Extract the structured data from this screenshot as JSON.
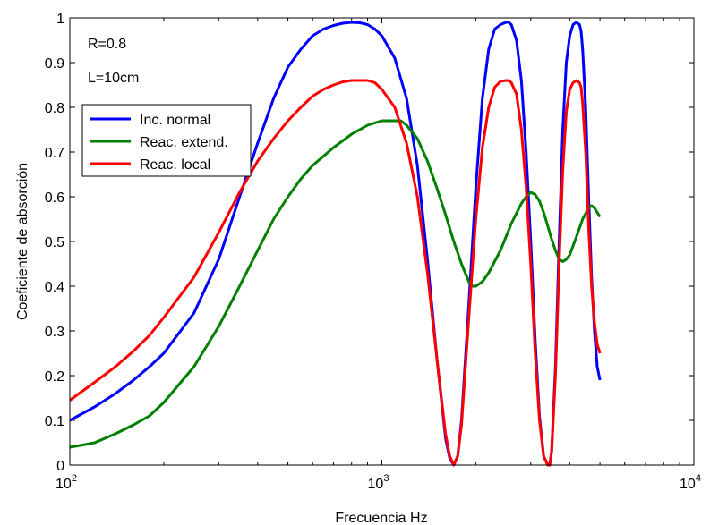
{
  "chart_data": {
    "type": "line",
    "xscale": "log",
    "xlim": [
      100,
      10000
    ],
    "ylim": [
      0,
      1
    ],
    "xlabel": "Frecuencia Hz",
    "ylabel": "Coeficiente de absorción",
    "xticks": [
      {
        "value": 100,
        "base": "10",
        "exp": "2"
      },
      {
        "value": 1000,
        "base": "10",
        "exp": "3"
      },
      {
        "value": 10000,
        "base": "10",
        "exp": "4"
      }
    ],
    "yticks": [
      "0",
      "0.1",
      "0.2",
      "0.3",
      "0.4",
      "0.5",
      "0.6",
      "0.7",
      "0.8",
      "0.9",
      "1"
    ],
    "annotations": [
      "R=0.8",
      "L=10cm"
    ],
    "legend_position": "upper-left",
    "series": [
      {
        "name": "Inc. normal",
        "color": "#0000ff",
        "x": [
          100,
          120,
          140,
          160,
          180,
          200,
          250,
          300,
          350,
          400,
          450,
          500,
          550,
          600,
          650,
          700,
          750,
          800,
          850,
          900,
          950,
          1000,
          1100,
          1200,
          1300,
          1400,
          1500,
          1600,
          1650,
          1700,
          1750,
          1800,
          1900,
          2000,
          2100,
          2200,
          2300,
          2400,
          2500,
          2550,
          2600,
          2700,
          2800,
          2900,
          3000,
          3100,
          3200,
          3300,
          3400,
          3450,
          3500,
          3600,
          3700,
          3800,
          3900,
          4000,
          4100,
          4200,
          4300,
          4350,
          4400,
          4500,
          4600,
          4700,
          4800,
          4900,
          5000
        ],
        "y": [
          0.1,
          0.13,
          0.16,
          0.19,
          0.22,
          0.25,
          0.34,
          0.46,
          0.6,
          0.72,
          0.82,
          0.89,
          0.93,
          0.96,
          0.975,
          0.983,
          0.988,
          0.99,
          0.989,
          0.985,
          0.975,
          0.96,
          0.91,
          0.82,
          0.67,
          0.46,
          0.24,
          0.06,
          0.015,
          0.0,
          0.02,
          0.1,
          0.36,
          0.62,
          0.82,
          0.93,
          0.975,
          0.985,
          0.99,
          0.99,
          0.985,
          0.95,
          0.86,
          0.7,
          0.5,
          0.28,
          0.11,
          0.02,
          0.0,
          0.0,
          0.03,
          0.22,
          0.5,
          0.75,
          0.9,
          0.96,
          0.985,
          0.99,
          0.985,
          0.97,
          0.93,
          0.8,
          0.6,
          0.42,
          0.3,
          0.22,
          0.19
        ]
      },
      {
        "name": "Reac. extend.",
        "color": "#008000",
        "x": [
          100,
          110,
          120,
          140,
          160,
          180,
          200,
          250,
          300,
          350,
          400,
          450,
          500,
          550,
          600,
          700,
          800,
          900,
          1000,
          1100,
          1150,
          1200,
          1300,
          1400,
          1500,
          1600,
          1700,
          1800,
          1900,
          1950,
          2000,
          2100,
          2200,
          2400,
          2600,
          2800,
          2900,
          3000,
          3100,
          3200,
          3300,
          3400,
          3500,
          3600,
          3700,
          3800,
          3900,
          4000,
          4200,
          4400,
          4600,
          4700,
          4800,
          4900,
          5000
        ],
        "y": [
          0.04,
          0.045,
          0.05,
          0.07,
          0.09,
          0.11,
          0.14,
          0.22,
          0.31,
          0.4,
          0.48,
          0.55,
          0.6,
          0.64,
          0.67,
          0.71,
          0.74,
          0.76,
          0.77,
          0.77,
          0.77,
          0.76,
          0.73,
          0.68,
          0.62,
          0.56,
          0.5,
          0.45,
          0.41,
          0.4,
          0.4,
          0.41,
          0.43,
          0.48,
          0.54,
          0.585,
          0.6,
          0.61,
          0.605,
          0.59,
          0.565,
          0.535,
          0.505,
          0.48,
          0.46,
          0.455,
          0.46,
          0.47,
          0.51,
          0.55,
          0.575,
          0.58,
          0.575,
          0.565,
          0.555
        ]
      },
      {
        "name": "Reac. local",
        "color": "#ff0000",
        "x": [
          100,
          120,
          140,
          160,
          180,
          200,
          250,
          300,
          350,
          400,
          450,
          500,
          550,
          600,
          650,
          700,
          750,
          800,
          850,
          900,
          950,
          1000,
          1100,
          1200,
          1300,
          1400,
          1500,
          1600,
          1650,
          1700,
          1750,
          1800,
          1900,
          2000,
          2100,
          2200,
          2300,
          2400,
          2500,
          2550,
          2600,
          2700,
          2800,
          2900,
          3000,
          3100,
          3200,
          3300,
          3400,
          3450,
          3500,
          3600,
          3700,
          3800,
          3900,
          4000,
          4100,
          4200,
          4300,
          4350,
          4400,
          4500,
          4600,
          4700,
          4800,
          4900,
          5000
        ],
        "y": [
          0.145,
          0.185,
          0.22,
          0.255,
          0.29,
          0.33,
          0.42,
          0.52,
          0.61,
          0.68,
          0.73,
          0.77,
          0.8,
          0.825,
          0.84,
          0.85,
          0.857,
          0.86,
          0.86,
          0.86,
          0.855,
          0.84,
          0.8,
          0.72,
          0.6,
          0.43,
          0.24,
          0.07,
          0.02,
          0.0,
          0.02,
          0.09,
          0.33,
          0.55,
          0.71,
          0.8,
          0.845,
          0.858,
          0.86,
          0.86,
          0.855,
          0.83,
          0.75,
          0.62,
          0.45,
          0.25,
          0.1,
          0.02,
          0.0,
          0.0,
          0.03,
          0.2,
          0.45,
          0.66,
          0.79,
          0.84,
          0.855,
          0.86,
          0.855,
          0.845,
          0.81,
          0.7,
          0.53,
          0.4,
          0.32,
          0.27,
          0.25
        ]
      }
    ]
  }
}
